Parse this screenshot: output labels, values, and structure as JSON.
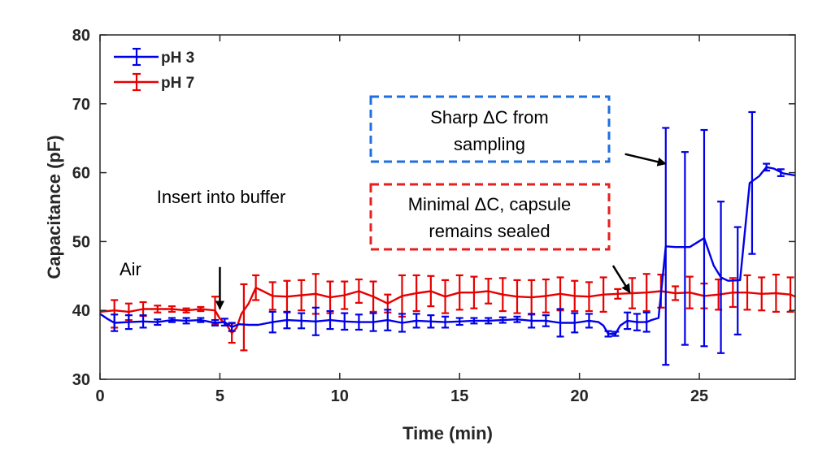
{
  "chart_data": {
    "type": "line",
    "xlabel": "Time (min)",
    "ylabel": "Capacitance (pF)",
    "xlim": [
      0,
      29
    ],
    "ylim": [
      30,
      80
    ],
    "xticks": [
      0,
      5,
      10,
      15,
      20,
      25
    ],
    "yticks": [
      30,
      40,
      50,
      60,
      70,
      80
    ],
    "grid": false,
    "legend_position": "top-left",
    "series": [
      {
        "name": "pH 3",
        "color": "#0000e6",
        "points": [
          [
            0,
            39.5
          ],
          [
            0.3,
            38.8
          ],
          [
            0.6,
            38.2
          ],
          [
            1.2,
            38.3
          ],
          [
            1.8,
            38.4
          ],
          [
            2.4,
            38.3
          ],
          [
            3.0,
            38.6
          ],
          [
            3.6,
            38.5
          ],
          [
            4.2,
            38.6
          ],
          [
            4.8,
            38.2
          ],
          [
            5.2,
            38.3
          ],
          [
            5.5,
            37.6
          ],
          [
            5.8,
            38.0
          ],
          [
            6.2,
            37.9
          ],
          [
            6.6,
            37.9
          ],
          [
            7.2,
            38.3
          ],
          [
            7.8,
            38.6
          ],
          [
            8.4,
            38.5
          ],
          [
            9.0,
            38.4
          ],
          [
            9.6,
            38.6
          ],
          [
            10.2,
            38.4
          ],
          [
            10.8,
            38.3
          ],
          [
            11.4,
            38.3
          ],
          [
            12.0,
            38.6
          ],
          [
            12.6,
            38.2
          ],
          [
            13.2,
            38.5
          ],
          [
            13.8,
            38.4
          ],
          [
            14.4,
            38.3
          ],
          [
            15.0,
            38.4
          ],
          [
            15.6,
            38.5
          ],
          [
            16.2,
            38.5
          ],
          [
            16.8,
            38.6
          ],
          [
            17.4,
            38.7
          ],
          [
            18.0,
            38.5
          ],
          [
            18.6,
            38.5
          ],
          [
            19.2,
            38.2
          ],
          [
            19.8,
            38.2
          ],
          [
            20.4,
            38.5
          ],
          [
            20.8,
            38.3
          ],
          [
            21.0,
            37.8
          ],
          [
            21.2,
            36.6
          ],
          [
            21.5,
            36.6
          ],
          [
            21.7,
            37.8
          ],
          [
            22.0,
            38.5
          ],
          [
            22.4,
            38.3
          ],
          [
            22.8,
            38.3
          ],
          [
            23.0,
            38.6
          ],
          [
            23.3,
            38.9
          ],
          [
            23.6,
            49.3
          ],
          [
            24.0,
            49.2
          ],
          [
            24.6,
            49.2
          ],
          [
            25.2,
            50.5
          ],
          [
            25.6,
            46.5
          ],
          [
            25.9,
            44.8
          ],
          [
            26.2,
            44.3
          ],
          [
            26.7,
            44.4
          ],
          [
            27.1,
            58.5
          ],
          [
            27.5,
            59.5
          ],
          [
            27.8,
            60.8
          ],
          [
            28.1,
            60.6
          ],
          [
            28.5,
            59.9
          ],
          [
            29.0,
            59.6
          ]
        ],
        "error_bars": [
          [
            0.6,
            38.2,
            1.2
          ],
          [
            1.2,
            38.3,
            1.0
          ],
          [
            1.8,
            38.4,
            0.9
          ],
          [
            2.4,
            38.3,
            0.4
          ],
          [
            3.0,
            38.6,
            0.3
          ],
          [
            3.6,
            38.5,
            0.4
          ],
          [
            4.2,
            38.6,
            0.3
          ],
          [
            4.8,
            38.2,
            0.4
          ],
          [
            5.2,
            38.3,
            0.5
          ],
          [
            5.5,
            37.6,
            0.6
          ],
          [
            7.2,
            38.3,
            1.5
          ],
          [
            7.8,
            38.6,
            1.2
          ],
          [
            8.4,
            38.5,
            1.1
          ],
          [
            9.0,
            38.4,
            2.0
          ],
          [
            9.6,
            38.6,
            1.3
          ],
          [
            10.2,
            38.4,
            1.2
          ],
          [
            10.8,
            38.3,
            1.1
          ],
          [
            11.4,
            38.3,
            1.3
          ],
          [
            12.0,
            38.6,
            1.5
          ],
          [
            12.6,
            38.2,
            1.3
          ],
          [
            13.2,
            38.5,
            1.0
          ],
          [
            13.8,
            38.4,
            0.9
          ],
          [
            14.4,
            38.3,
            0.8
          ],
          [
            15.0,
            38.4,
            0.5
          ],
          [
            15.6,
            38.5,
            0.4
          ],
          [
            16.2,
            38.5,
            0.4
          ],
          [
            16.8,
            38.6,
            0.4
          ],
          [
            17.4,
            38.7,
            0.4
          ],
          [
            18.0,
            38.5,
            1.0
          ],
          [
            18.6,
            38.5,
            0.8
          ],
          [
            19.2,
            38.2,
            2.0
          ],
          [
            19.8,
            38.2,
            1.4
          ],
          [
            20.4,
            38.5,
            1.0
          ],
          [
            21.2,
            36.6,
            0.4
          ],
          [
            21.5,
            36.6,
            0.3
          ],
          [
            22.0,
            38.5,
            1.2
          ],
          [
            22.4,
            38.3,
            1.2
          ],
          [
            22.8,
            38.3,
            1.4
          ],
          [
            23.6,
            49.3,
            17.2
          ],
          [
            24.4,
            49.0,
            14.0
          ],
          [
            25.2,
            50.5,
            15.7
          ],
          [
            25.9,
            44.8,
            11.0
          ],
          [
            26.6,
            44.3,
            7.8
          ],
          [
            27.2,
            58.5,
            10.3
          ],
          [
            27.8,
            60.8,
            0.5
          ],
          [
            28.4,
            60.0,
            0.5
          ]
        ]
      },
      {
        "name": "pH 7",
        "color": "#e60000",
        "points": [
          [
            0,
            39.8
          ],
          [
            0.6,
            40.0
          ],
          [
            1.2,
            39.8
          ],
          [
            1.8,
            40.2
          ],
          [
            2.4,
            40.2
          ],
          [
            3.0,
            40.2
          ],
          [
            3.6,
            40.0
          ],
          [
            4.2,
            40.2
          ],
          [
            4.8,
            40.0
          ],
          [
            5.0,
            38.8
          ],
          [
            5.3,
            37.8
          ],
          [
            5.5,
            36.7
          ],
          [
            5.7,
            37.5
          ],
          [
            5.9,
            39.5
          ],
          [
            6.2,
            41.0
          ],
          [
            6.5,
            43.3
          ],
          [
            6.8,
            42.8
          ],
          [
            7.2,
            42.1
          ],
          [
            7.8,
            42.0
          ],
          [
            8.4,
            42.2
          ],
          [
            9.0,
            42.4
          ],
          [
            9.6,
            41.9
          ],
          [
            10.2,
            42.2
          ],
          [
            10.8,
            42.8
          ],
          [
            11.4,
            42.0
          ],
          [
            12.0,
            41.0
          ],
          [
            12.6,
            42.1
          ],
          [
            13.2,
            42.5
          ],
          [
            13.8,
            42.8
          ],
          [
            14.4,
            42.0
          ],
          [
            15.0,
            42.6
          ],
          [
            15.6,
            42.6
          ],
          [
            16.2,
            42.8
          ],
          [
            16.8,
            42.3
          ],
          [
            17.4,
            42.0
          ],
          [
            18.0,
            41.9
          ],
          [
            18.6,
            42.1
          ],
          [
            19.2,
            42.4
          ],
          [
            19.8,
            42.1
          ],
          [
            20.4,
            42.0
          ],
          [
            21.0,
            42.3
          ],
          [
            21.6,
            42.4
          ],
          [
            22.2,
            42.5
          ],
          [
            22.8,
            42.6
          ],
          [
            23.4,
            42.8
          ],
          [
            24.0,
            42.5
          ],
          [
            24.6,
            42.6
          ],
          [
            25.2,
            42.1
          ],
          [
            25.8,
            42.3
          ],
          [
            26.4,
            42.6
          ],
          [
            27.0,
            42.6
          ],
          [
            27.6,
            42.4
          ],
          [
            28.2,
            42.5
          ],
          [
            28.8,
            42.3
          ],
          [
            29.0,
            42.0
          ]
        ],
        "error_bars": [
          [
            0.6,
            39.5,
            2.0
          ],
          [
            1.2,
            39.8,
            1.2
          ],
          [
            1.8,
            40.2,
            1.0
          ],
          [
            2.4,
            40.2,
            0.5
          ],
          [
            3.0,
            40.2,
            0.4
          ],
          [
            3.6,
            40.0,
            0.3
          ],
          [
            4.2,
            40.2,
            0.3
          ],
          [
            4.8,
            40.0,
            2.0
          ],
          [
            5.5,
            36.7,
            1.4
          ],
          [
            6.0,
            39.0,
            4.8
          ],
          [
            6.5,
            43.3,
            1.8
          ],
          [
            7.2,
            42.1,
            2.0
          ],
          [
            7.8,
            42.0,
            2.3
          ],
          [
            8.4,
            42.2,
            2.2
          ],
          [
            9.0,
            42.4,
            2.9
          ],
          [
            9.6,
            41.9,
            2.3
          ],
          [
            10.2,
            42.2,
            2.0
          ],
          [
            10.8,
            42.8,
            1.7
          ],
          [
            11.4,
            42.0,
            2.2
          ],
          [
            12.0,
            41.0,
            1.3
          ],
          [
            12.6,
            42.1,
            3.0
          ],
          [
            13.2,
            42.5,
            2.6
          ],
          [
            13.8,
            42.8,
            2.2
          ],
          [
            14.4,
            42.0,
            2.4
          ],
          [
            15.0,
            42.6,
            2.5
          ],
          [
            15.6,
            42.6,
            2.3
          ],
          [
            16.2,
            42.8,
            1.8
          ],
          [
            16.8,
            42.3,
            2.4
          ],
          [
            17.4,
            42.0,
            2.4
          ],
          [
            18.0,
            41.9,
            2.5
          ],
          [
            18.6,
            42.1,
            2.4
          ],
          [
            19.2,
            42.4,
            2.4
          ],
          [
            19.8,
            42.1,
            2.2
          ],
          [
            20.4,
            42.0,
            2.1
          ],
          [
            21.0,
            42.3,
            2.5
          ],
          [
            21.6,
            42.4,
            0.7
          ],
          [
            22.2,
            42.5,
            2.2
          ],
          [
            22.8,
            42.6,
            2.7
          ],
          [
            23.4,
            42.8,
            2.4
          ],
          [
            24.0,
            42.5,
            1.0
          ],
          [
            24.6,
            42.6,
            2.3
          ],
          [
            25.2,
            42.1,
            1.8
          ],
          [
            25.8,
            42.3,
            2.2
          ],
          [
            26.4,
            42.6,
            2.1
          ],
          [
            27.0,
            42.6,
            2.5
          ],
          [
            27.6,
            42.4,
            2.4
          ],
          [
            28.2,
            42.5,
            2.7
          ],
          [
            28.8,
            42.3,
            2.5
          ]
        ]
      }
    ],
    "annotations": [
      {
        "id": "air",
        "text": "Air"
      },
      {
        "id": "insert",
        "lines": [
          "Insert into buffer"
        ],
        "arrow_from": [
          5,
          46.3
        ],
        "arrow_to": [
          5,
          40.2
        ]
      },
      {
        "id": "sharp",
        "lines": [
          "Sharp ΔC from",
          "sampling"
        ],
        "box_color": "#1f6fe0",
        "arrow_from": [
          21.9,
          62.7
        ],
        "arrow_to": [
          23.6,
          61.3
        ]
      },
      {
        "id": "minimal",
        "lines": [
          "Minimal ΔC, capsule",
          "remains sealed"
        ],
        "box_color": "#e62020",
        "arrow_from": [
          21.4,
          46.5
        ],
        "arrow_to": [
          22.1,
          42.6
        ]
      }
    ]
  }
}
